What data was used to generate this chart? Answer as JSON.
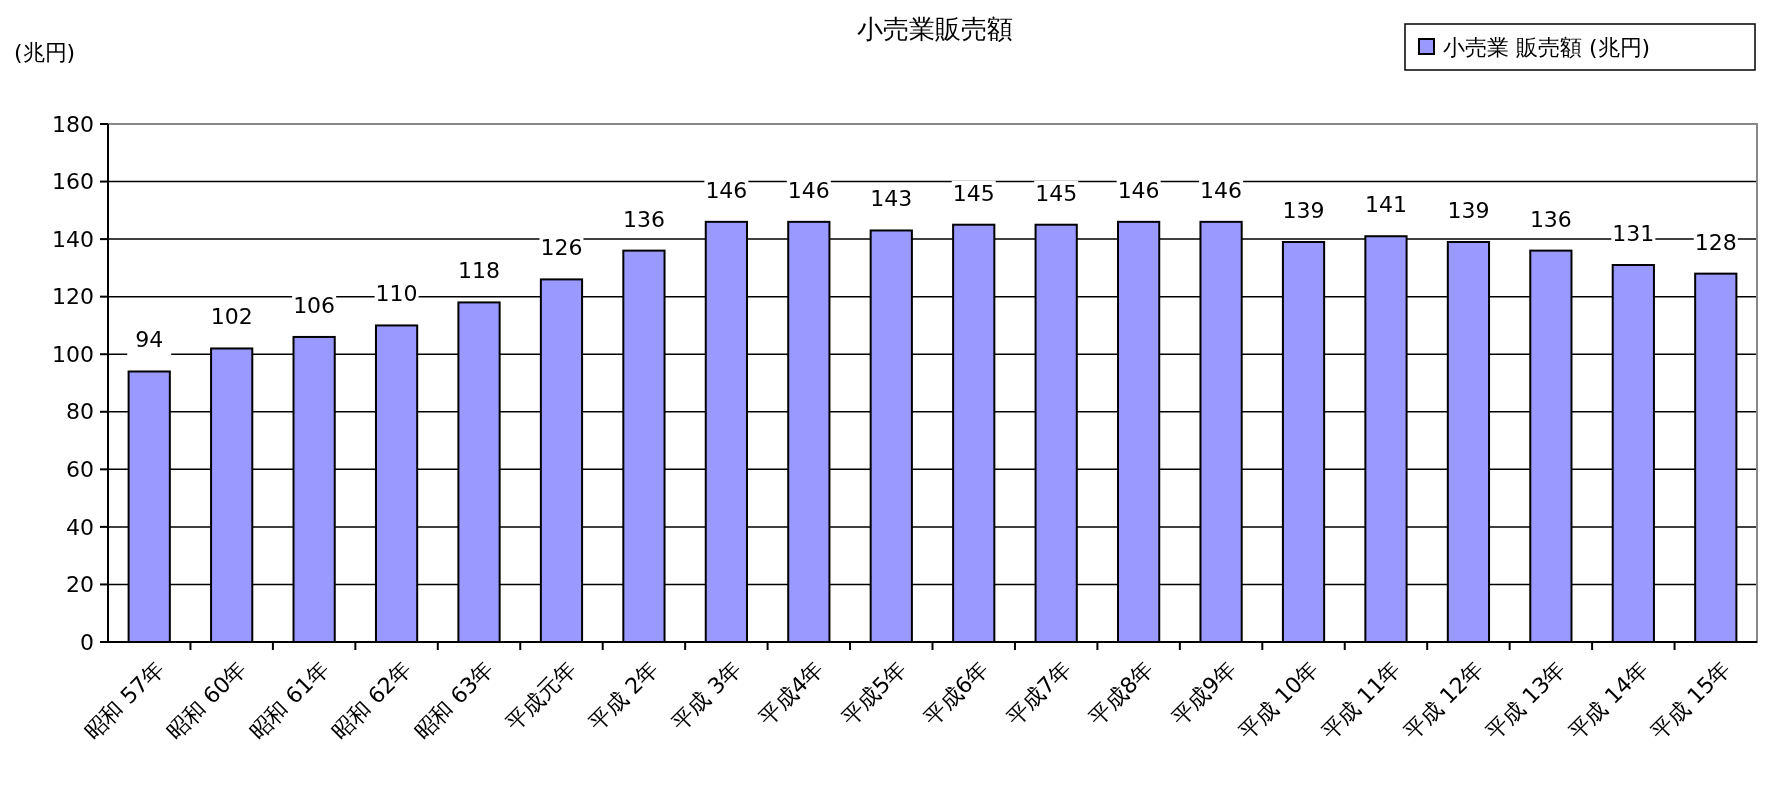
{
  "chart_data": {
    "type": "bar",
    "title": "小売業販売額",
    "ylabel": "(兆円)",
    "categories": [
      "昭和 57年",
      "昭和 60年",
      "昭和 61年",
      "昭和 62年",
      "昭和 63年",
      "平成元年",
      "平成 2年",
      "平成 3年",
      "平成4年",
      "平成5年",
      "平成6年",
      "平成7年",
      "平成8年",
      "平成9年",
      "平成 10年",
      "平成 11年",
      "平成 12年",
      "平成 13年",
      "平成 14年",
      "平成 15年"
    ],
    "series": [
      {
        "name": "小売業 販売額 (兆円)",
        "color": "#9999ff",
        "values": [
          94,
          102,
          106,
          110,
          118,
          126,
          136,
          146,
          146,
          143,
          145,
          145,
          146,
          146,
          139,
          141,
          139,
          136,
          131,
          128
        ]
      }
    ],
    "ylim": [
      0,
      180
    ],
    "yticks": [
      0,
      20,
      40,
      60,
      80,
      100,
      120,
      140,
      160,
      180
    ],
    "grid": "y",
    "legend": "top right",
    "data_labels": true
  }
}
